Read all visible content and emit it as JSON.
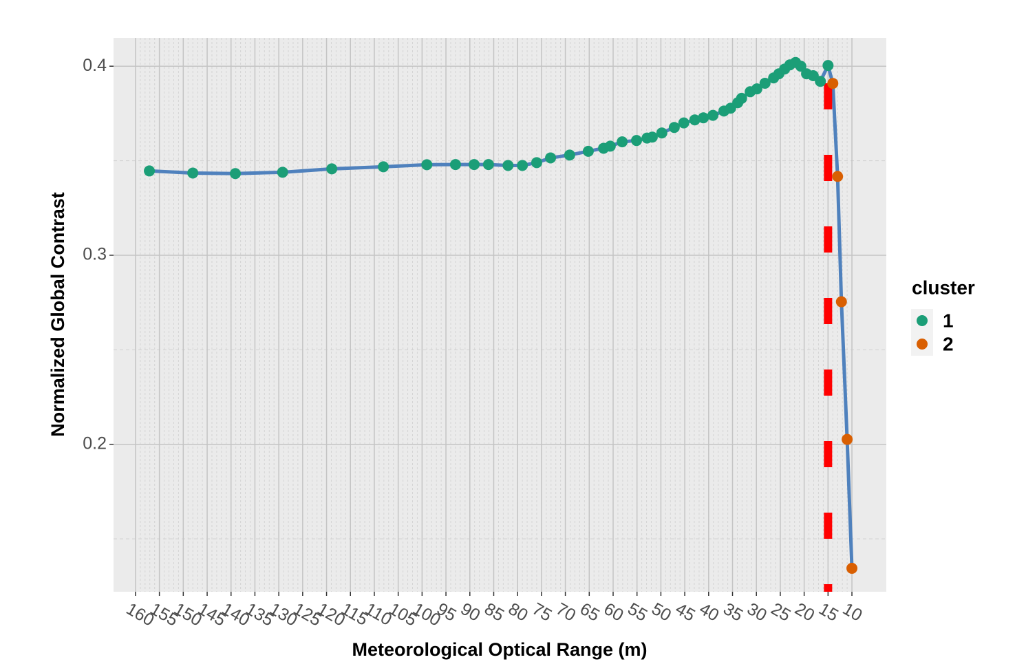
{
  "chart_data": {
    "type": "line",
    "x_label": "Meteorological Optical Range (m)",
    "y_label": "Normalized Global Contrast",
    "legend_title": "cluster",
    "legend_position": "right",
    "line_color": "#4f81bd",
    "vline": 15,
    "vline_color": "#ff0000",
    "grid": true,
    "xlim": [
      164.6,
      2.8
    ],
    "xticks": [
      160,
      155,
      150,
      145,
      140,
      135,
      130,
      125,
      120,
      115,
      110,
      105,
      100,
      95,
      90,
      85,
      80,
      75,
      70,
      65,
      60,
      55,
      50,
      45,
      40,
      35,
      30,
      25,
      20,
      15,
      10
    ],
    "ylim": [
      0.122,
      0.415
    ],
    "yticks": [
      0.2,
      0.3,
      0.4
    ],
    "y_minor_ticks": [
      0.15,
      0.25,
      0.35
    ],
    "series": [
      {
        "name": "1",
        "color": "#1b9e77",
        "x": [
          157.1,
          148.0,
          139.1,
          129.2,
          118.9,
          108.1,
          99.0,
          93.0,
          89.1,
          86.1,
          82.0,
          79.0,
          76.0,
          73.1,
          69.1,
          65.2,
          62.0,
          60.6,
          58.1,
          55.1,
          52.9,
          51.8,
          49.8,
          47.2,
          45.2,
          42.9,
          41.1,
          39.1,
          36.8,
          35.4,
          33.9,
          33.1,
          31.3,
          29.9,
          28.2,
          26.4,
          25.3,
          24.1,
          23.0,
          21.8,
          20.7,
          19.5,
          18.1,
          16.6,
          15.0
        ],
        "values": [
          0.3446,
          0.3435,
          0.3432,
          0.3439,
          0.3457,
          0.3468,
          0.3479,
          0.348,
          0.348,
          0.348,
          0.3475,
          0.3475,
          0.349,
          0.3515,
          0.353,
          0.355,
          0.3566,
          0.3577,
          0.36,
          0.3607,
          0.362,
          0.3625,
          0.3647,
          0.3676,
          0.37,
          0.3716,
          0.3727,
          0.374,
          0.3763,
          0.3778,
          0.3807,
          0.383,
          0.3865,
          0.388,
          0.391,
          0.3938,
          0.396,
          0.3985,
          0.4007,
          0.402,
          0.4,
          0.396,
          0.395,
          0.392,
          0.4004
        ]
      },
      {
        "name": "2",
        "color": "#d95f02",
        "x": [
          14.0,
          13.0,
          12.2,
          11.0,
          10.0
        ],
        "values": [
          0.3909,
          0.3417,
          0.2754,
          0.2026,
          0.1344
        ]
      }
    ]
  }
}
